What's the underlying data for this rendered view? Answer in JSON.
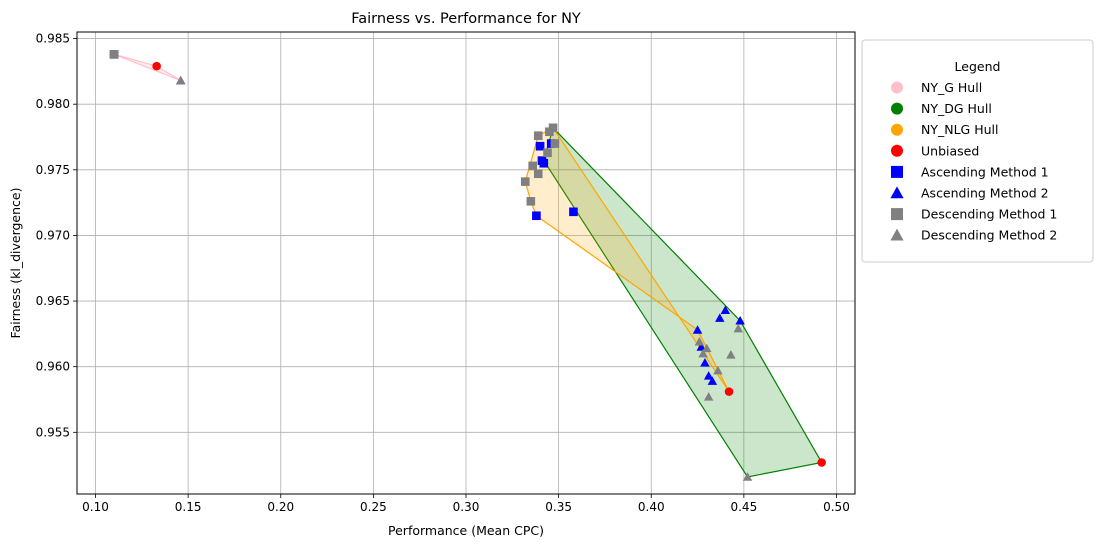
{
  "chart_data": {
    "type": "scatter",
    "title": "Fairness vs. Performance for NY",
    "xlabel": "Performance (Mean CPC)",
    "ylabel": "Fairness (kl_divergence)",
    "xlim": [
      0.09,
      0.51
    ],
    "ylim": [
      0.9503,
      0.9855
    ],
    "xticks": [
      "0.10",
      "0.15",
      "0.20",
      "0.25",
      "0.30",
      "0.35",
      "0.40",
      "0.45",
      "0.50"
    ],
    "yticks": [
      "0.955",
      "0.960",
      "0.965",
      "0.970",
      "0.975",
      "0.980",
      "0.985"
    ],
    "grid": true,
    "legend": {
      "title": "Legend",
      "placement": "outside-right",
      "entries": [
        {
          "label": "NY_G Hull",
          "marker": "circle",
          "color": "#ffc0cb"
        },
        {
          "label": "NY_DG Hull",
          "marker": "circle",
          "color": "#008000"
        },
        {
          "label": "NY_NLG Hull",
          "marker": "circle",
          "color": "#ffa500"
        },
        {
          "label": "Unbiased",
          "marker": "circle",
          "color": "#ff0000"
        },
        {
          "label": "Ascending Method 1",
          "marker": "square",
          "color": "#0000ff"
        },
        {
          "label": "Ascending Method 2",
          "marker": "triangle",
          "color": "#0000ff"
        },
        {
          "label": "Descending Method 1",
          "marker": "square",
          "color": "#808080"
        },
        {
          "label": "Descending Method 2",
          "marker": "triangle",
          "color": "#808080"
        }
      ]
    },
    "hulls": [
      {
        "name": "NY_G Hull",
        "edge": "#ffc0cb",
        "fill": "#ffc0cb",
        "fill_alpha": 0.3,
        "points": [
          [
            0.11,
            0.9838
          ],
          [
            0.133,
            0.9829
          ],
          [
            0.146,
            0.9818
          ]
        ]
      },
      {
        "name": "NY_DG Hull",
        "edge": "#008000",
        "fill": "#008000",
        "fill_alpha": 0.2,
        "points": [
          [
            0.347,
            0.9782
          ],
          [
            0.448,
            0.9635
          ],
          [
            0.492,
            0.9527
          ],
          [
            0.452,
            0.9516
          ],
          [
            0.342,
            0.9757
          ]
        ]
      },
      {
        "name": "NY_NLG Hull",
        "edge": "#ffa500",
        "fill": "#ffa500",
        "fill_alpha": 0.2,
        "points": [
          [
            0.339,
            0.9776
          ],
          [
            0.347,
            0.9782
          ],
          [
            0.442,
            0.9581
          ],
          [
            0.425,
            0.9628
          ],
          [
            0.338,
            0.9715
          ],
          [
            0.335,
            0.9726
          ],
          [
            0.332,
            0.9741
          ]
        ]
      }
    ],
    "series": [
      {
        "name": "Unbiased",
        "marker": "circle",
        "color": "#ff0000",
        "points": [
          [
            0.133,
            0.9829
          ],
          [
            0.442,
            0.9581
          ],
          [
            0.492,
            0.9527
          ]
        ]
      },
      {
        "name": "Ascending Method 1",
        "marker": "square",
        "color": "#0000ff",
        "points": [
          [
            0.11,
            0.9838
          ],
          [
            0.338,
            0.9715
          ],
          [
            0.34,
            0.9768
          ],
          [
            0.341,
            0.9757
          ],
          [
            0.342,
            0.9755
          ],
          [
            0.346,
            0.977
          ],
          [
            0.358,
            0.9718
          ]
        ]
      },
      {
        "name": "Ascending Method 2",
        "marker": "triangle",
        "color": "#0000ff",
        "points": [
          [
            0.146,
            0.9818
          ],
          [
            0.425,
            0.9628
          ],
          [
            0.427,
            0.9615
          ],
          [
            0.429,
            0.9603
          ],
          [
            0.431,
            0.9593
          ],
          [
            0.433,
            0.9589
          ],
          [
            0.437,
            0.9637
          ],
          [
            0.44,
            0.9643
          ],
          [
            0.448,
            0.9635
          ]
        ]
      },
      {
        "name": "Descending Method 1",
        "marker": "square",
        "color": "#808080",
        "points": [
          [
            0.11,
            0.9838
          ],
          [
            0.332,
            0.9741
          ],
          [
            0.335,
            0.9726
          ],
          [
            0.336,
            0.9753
          ],
          [
            0.339,
            0.9776
          ],
          [
            0.339,
            0.9747
          ],
          [
            0.344,
            0.9763
          ],
          [
            0.345,
            0.9779
          ],
          [
            0.347,
            0.9782
          ],
          [
            0.348,
            0.977
          ]
        ]
      },
      {
        "name": "Descending Method 2",
        "marker": "triangle",
        "color": "#808080",
        "points": [
          [
            0.146,
            0.9818
          ],
          [
            0.426,
            0.9619
          ],
          [
            0.428,
            0.961
          ],
          [
            0.43,
            0.9614
          ],
          [
            0.431,
            0.9577
          ],
          [
            0.436,
            0.9597
          ],
          [
            0.443,
            0.9609
          ],
          [
            0.447,
            0.9629
          ],
          [
            0.452,
            0.9516
          ]
        ]
      }
    ]
  }
}
